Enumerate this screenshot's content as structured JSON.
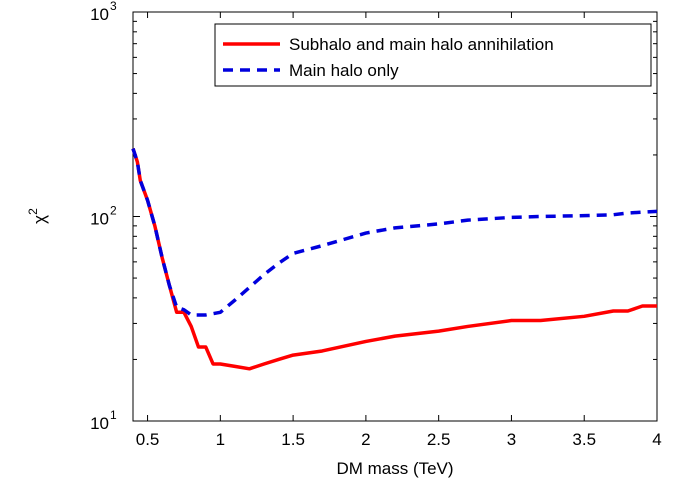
{
  "chart_data": {
    "type": "line",
    "xlabel": "DM mass (TeV)",
    "ylabel": "χ",
    "ylabel_superscript": "2",
    "xlim": [
      0.4,
      4
    ],
    "ylim": [
      10,
      1000
    ],
    "yscale": "log",
    "x_ticks": [
      {
        "value": 0.5,
        "label": "0.5"
      },
      {
        "value": 1,
        "label": "1"
      },
      {
        "value": 1.5,
        "label": "1.5"
      },
      {
        "value": 2,
        "label": "2"
      },
      {
        "value": 2.5,
        "label": "2.5"
      },
      {
        "value": 3,
        "label": "3"
      },
      {
        "value": 3.5,
        "label": "3.5"
      },
      {
        "value": 4,
        "label": "4"
      }
    ],
    "y_ticks": [
      {
        "value": 10,
        "base": "10",
        "exp": "1"
      },
      {
        "value": 100,
        "base": "10",
        "exp": "2"
      },
      {
        "value": 1000,
        "base": "10",
        "exp": "3"
      }
    ],
    "grid": false,
    "legend_position": "top-right",
    "series": [
      {
        "name": "Subhalo and main halo annihilation",
        "color": "#ff0000",
        "style": "solid",
        "x": [
          0.4,
          0.43,
          0.45,
          0.5,
          0.55,
          0.6,
          0.65,
          0.7,
          0.75,
          0.8,
          0.85,
          0.9,
          0.95,
          1.0,
          1.1,
          1.2,
          1.3,
          1.4,
          1.5,
          1.7,
          2.0,
          2.2,
          2.5,
          2.7,
          3.0,
          3.2,
          3.5,
          3.7,
          3.8,
          3.9,
          4.0
        ],
        "y": [
          215,
          185,
          150,
          120,
          90,
          63,
          46,
          34,
          34,
          29,
          23,
          23,
          19,
          19,
          18.5,
          18,
          19,
          20,
          21,
          22,
          24.5,
          26,
          27.5,
          29,
          31,
          31,
          32.5,
          34.5,
          34.5,
          36.5,
          36.5
        ]
      },
      {
        "name": "Main halo only",
        "color": "#0000dd",
        "style": "dashed",
        "x": [
          0.4,
          0.43,
          0.45,
          0.5,
          0.55,
          0.6,
          0.65,
          0.7,
          0.75,
          0.8,
          0.85,
          0.9,
          1.0,
          1.1,
          1.2,
          1.3,
          1.4,
          1.5,
          1.7,
          2.0,
          2.2,
          2.5,
          2.7,
          3.0,
          3.2,
          3.5,
          3.7,
          3.8,
          3.9,
          4.0
        ],
        "y": [
          215,
          185,
          150,
          120,
          90,
          63,
          46,
          36,
          35,
          33,
          33,
          33,
          34,
          39,
          45,
          52,
          59,
          66,
          72,
          83,
          88,
          92,
          96,
          99,
          100,
          101,
          102,
          104,
          105,
          106
        ]
      }
    ]
  }
}
